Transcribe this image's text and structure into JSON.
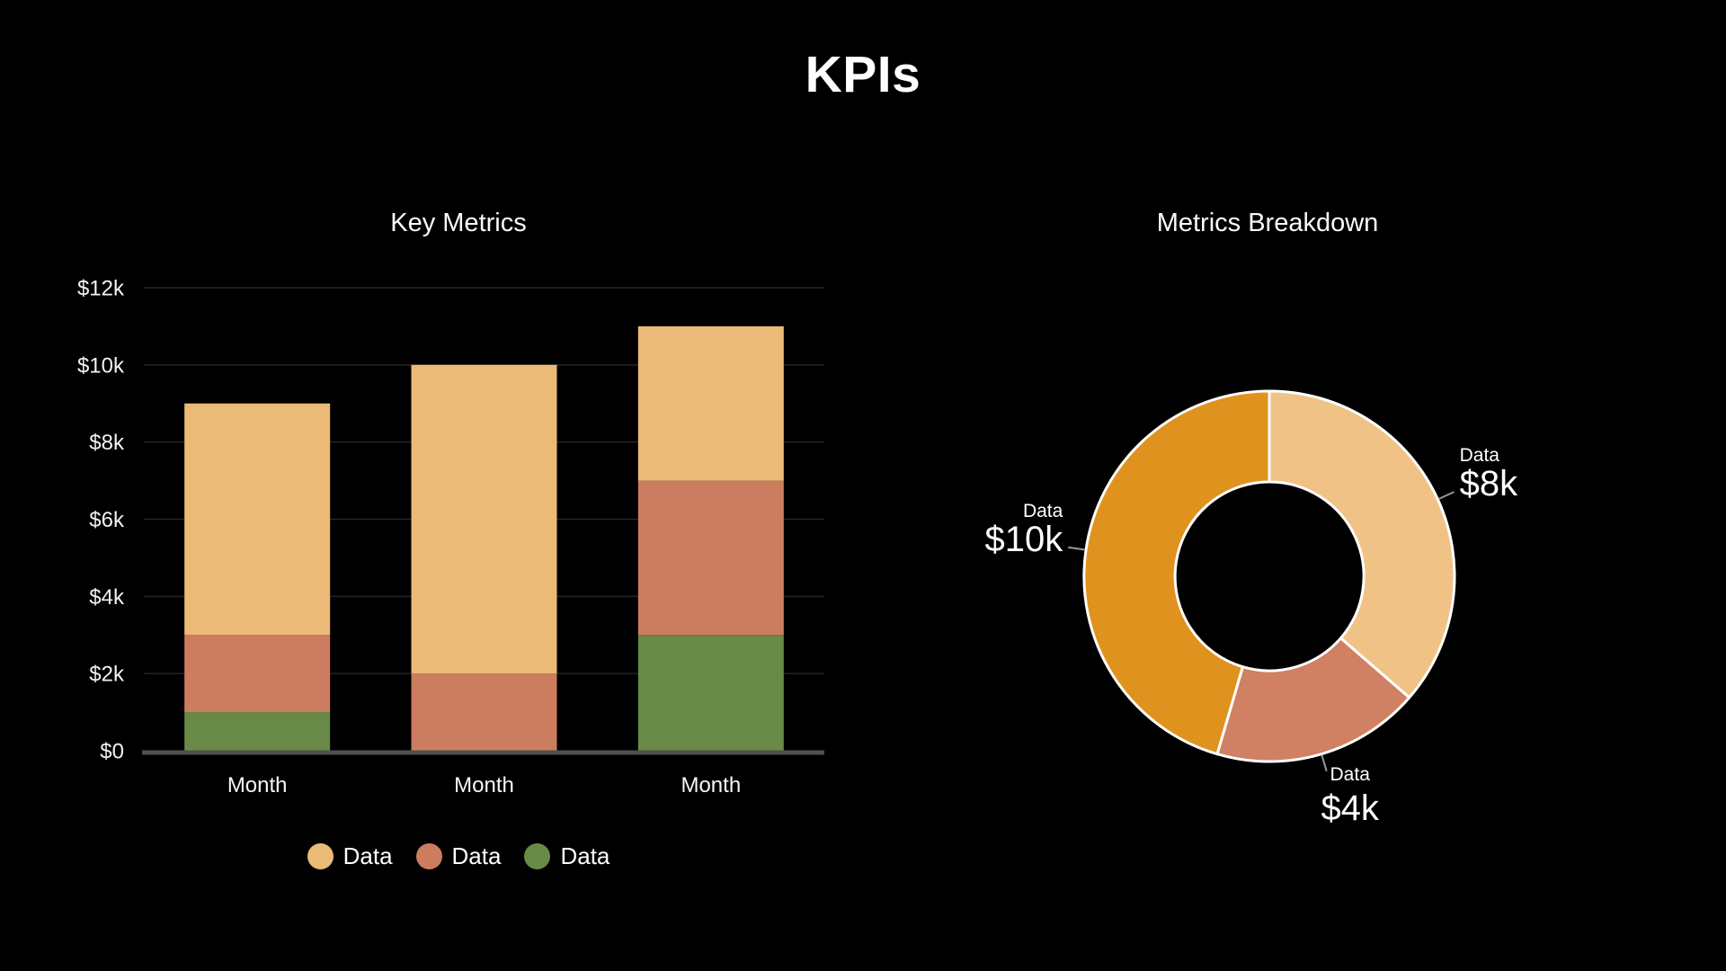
{
  "title": "KPIs",
  "colors": {
    "background": "#000000",
    "text": "#ffffff",
    "grid": "#242424",
    "axis_line": "#4f4f4f",
    "leader_line": "#999999",
    "bar_tan": "#ebba76",
    "bar_salmon": "#cd7d5f",
    "bar_green": "#688a46",
    "donut_tan": "#f0c286",
    "donut_salmon": "#d08063",
    "donut_orange": "#e0921f"
  },
  "chart_data": [
    {
      "id": "key-metrics-bar",
      "type": "bar",
      "stacked": true,
      "title": "Key Metrics",
      "categories": [
        "Month",
        "Month",
        "Month"
      ],
      "series": [
        {
          "name": "Data",
          "color": "#ebba76",
          "values": [
            6000,
            8000,
            4000
          ]
        },
        {
          "name": "Data",
          "color": "#cd7d5f",
          "values": [
            2000,
            2000,
            4000
          ]
        },
        {
          "name": "Data",
          "color": "#688a46",
          "values": [
            1000,
            0,
            3000
          ]
        }
      ],
      "stack_order": "last-series-at-bottom",
      "bar_totals": [
        9000,
        10000,
        11000
      ],
      "yticks": [
        "$0",
        "$2k",
        "$4k",
        "$6k",
        "$8k",
        "$10k",
        "$12k"
      ],
      "ylim": [
        0,
        12000
      ],
      "grid": true,
      "legend": {
        "position": "bottom",
        "labels": [
          "Data",
          "Data",
          "Data"
        ]
      }
    },
    {
      "id": "metrics-breakdown-donut",
      "type": "pie",
      "donut": true,
      "title": "Metrics Breakdown",
      "start_angle_deg": 0,
      "direction": "clockwise",
      "slices": [
        {
          "label": "Data",
          "value": 8000,
          "display_value": "$8k",
          "color": "#f0c286"
        },
        {
          "label": "Data",
          "value": 4000,
          "display_value": "$4k",
          "color": "#d08063"
        },
        {
          "label": "Data",
          "value": 10000,
          "display_value": "$10k",
          "color": "#e0921f"
        }
      ],
      "total": 22000
    }
  ]
}
